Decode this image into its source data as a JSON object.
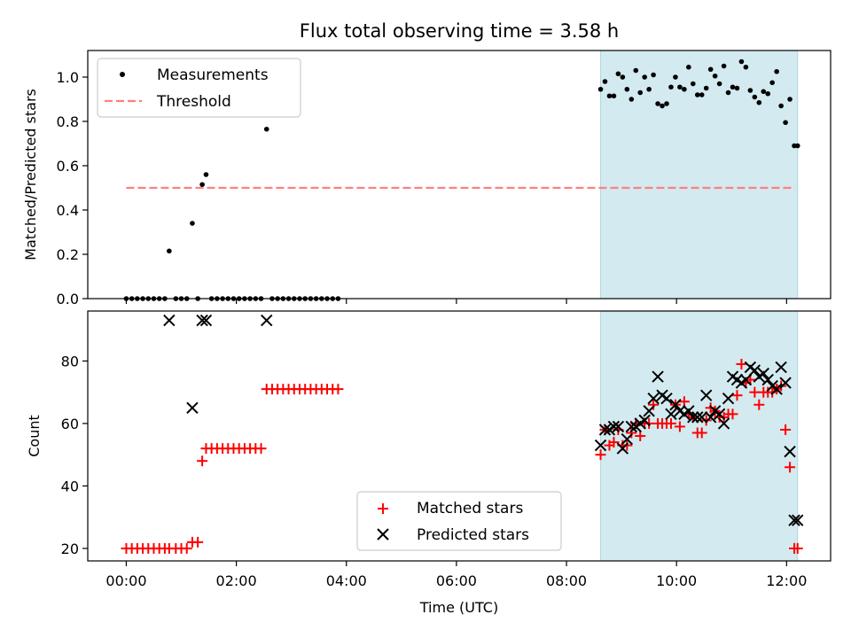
{
  "chart_data": [
    {
      "type": "scatter",
      "title": "Flux total observing time = 3.58 h",
      "xlabel": "",
      "ylabel": "Matched/Predicted stars",
      "xlim": [
        -0.7,
        12.8
      ],
      "ylim": [
        0,
        1.12
      ],
      "yticks": [
        0.0,
        0.2,
        0.4,
        0.6,
        0.8,
        1.0
      ],
      "ytick_labels": [
        "0.0",
        "0.2",
        "0.4",
        "0.6",
        "0.8",
        "1.0"
      ],
      "xticks": [
        0,
        2,
        4,
        6,
        8,
        10,
        12
      ],
      "shaded_region": {
        "x": [
          8.62,
          12.2
        ],
        "color": "#d3eaf0"
      },
      "legend": {
        "placement": "upper-left",
        "entries": [
          "Measurements",
          "Threshold"
        ]
      },
      "series": [
        {
          "name": "Measurements",
          "kind": "scatter",
          "color": "#000000",
          "x": [
            0.0,
            0.1,
            0.2,
            0.3,
            0.4,
            0.5,
            0.6,
            0.7,
            0.78,
            0.9,
            1.0,
            1.1,
            1.2,
            1.3,
            1.38,
            1.45,
            1.55,
            1.65,
            1.75,
            1.85,
            1.95,
            2.05,
            2.15,
            2.25,
            2.35,
            2.45,
            2.55,
            2.65,
            2.75,
            2.85,
            2.95,
            3.05,
            3.15,
            3.25,
            3.35,
            3.45,
            3.55,
            3.65,
            3.75,
            3.85,
            8.62,
            8.7,
            8.78,
            8.86,
            8.94,
            9.02,
            9.1,
            9.18,
            9.26,
            9.34,
            9.42,
            9.5,
            9.58,
            9.66,
            9.74,
            9.82,
            9.9,
            9.98,
            10.06,
            10.14,
            10.22,
            10.3,
            10.38,
            10.46,
            10.54,
            10.62,
            10.7,
            10.78,
            10.86,
            10.94,
            11.02,
            11.1,
            11.18,
            11.26,
            11.34,
            11.42,
            11.5,
            11.58,
            11.66,
            11.74,
            11.82,
            11.9,
            11.98,
            12.06,
            12.14,
            12.2
          ],
          "y": [
            0,
            0,
            0,
            0,
            0,
            0,
            0,
            0,
            0.215,
            0,
            0,
            0,
            0.34,
            0,
            0.515,
            0.56,
            0,
            0,
            0,
            0,
            0,
            0,
            0,
            0,
            0,
            0,
            0.765,
            0,
            0,
            0,
            0,
            0,
            0,
            0,
            0,
            0,
            0,
            0,
            0,
            0,
            0.945,
            0.98,
            0.915,
            0.915,
            1.015,
            1.0,
            0.945,
            0.9,
            1.03,
            0.93,
            1.0,
            0.945,
            1.01,
            0.88,
            0.87,
            0.88,
            0.955,
            1.0,
            0.955,
            0.945,
            1.045,
            0.97,
            0.92,
            0.92,
            0.95,
            1.035,
            1.005,
            0.97,
            1.05,
            0.93,
            0.955,
            0.95,
            1.07,
            1.045,
            0.94,
            0.91,
            0.885,
            0.935,
            0.925,
            0.975,
            1.025,
            0.87,
            0.795,
            0.9,
            0.69,
            0.69
          ]
        },
        {
          "name": "Threshold",
          "kind": "line",
          "style": "dashed",
          "color": "#ff7f7f",
          "x": [
            0,
            12.15
          ],
          "y": [
            0.5,
            0.5
          ]
        }
      ]
    },
    {
      "type": "scatter",
      "title": "",
      "xlabel": "Time (UTC)",
      "ylabel": "Count",
      "xlim": [
        -0.7,
        12.8
      ],
      "ylim": [
        16,
        96
      ],
      "yticks": [
        20,
        40,
        60,
        80
      ],
      "xticks": [
        0,
        2,
        4,
        6,
        8,
        10,
        12
      ],
      "xtick_labels": [
        "00:00",
        "02:00",
        "04:00",
        "06:00",
        "08:00",
        "10:00",
        "12:00"
      ],
      "shaded_region": {
        "x": [
          8.62,
          12.2
        ],
        "color": "#d3eaf0"
      },
      "legend": {
        "placement": "lower-center",
        "entries": [
          "Matched stars",
          "Predicted stars"
        ]
      },
      "series": [
        {
          "name": "Matched stars",
          "kind": "scatter",
          "marker": "plus",
          "color": "#ff0000",
          "x": [
            0.0,
            0.1,
            0.2,
            0.3,
            0.4,
            0.5,
            0.6,
            0.7,
            0.78,
            0.9,
            1.0,
            1.1,
            1.2,
            1.3,
            1.38,
            1.45,
            1.55,
            1.65,
            1.75,
            1.85,
            1.95,
            2.05,
            2.15,
            2.25,
            2.35,
            2.45,
            2.55,
            2.65,
            2.75,
            2.85,
            2.95,
            3.05,
            3.15,
            3.25,
            3.35,
            3.45,
            3.55,
            3.65,
            3.75,
            3.85,
            8.62,
            8.7,
            8.78,
            8.86,
            8.94,
            9.02,
            9.1,
            9.18,
            9.26,
            9.34,
            9.42,
            9.5,
            9.58,
            9.66,
            9.74,
            9.82,
            9.9,
            9.98,
            10.06,
            10.14,
            10.22,
            10.3,
            10.38,
            10.46,
            10.54,
            10.62,
            10.7,
            10.78,
            10.86,
            10.94,
            11.02,
            11.1,
            11.18,
            11.26,
            11.34,
            11.42,
            11.5,
            11.58,
            11.66,
            11.74,
            11.82,
            11.9,
            11.98,
            12.06,
            12.14,
            12.2
          ],
          "y": [
            20,
            20,
            20,
            20,
            20,
            20,
            20,
            20,
            20,
            20,
            20,
            20,
            22,
            22,
            48,
            52,
            52,
            52,
            52,
            52,
            52,
            52,
            52,
            52,
            52,
            52,
            71,
            71,
            71,
            71,
            71,
            71,
            71,
            71,
            71,
            71,
            71,
            71,
            71,
            71,
            50,
            58,
            53,
            54,
            58,
            53,
            53,
            57,
            60,
            56,
            60,
            60,
            66,
            60,
            60,
            60,
            60,
            66,
            59,
            67,
            63,
            62,
            57,
            57,
            61,
            65,
            64,
            62,
            62,
            63,
            63,
            69,
            79,
            73,
            74,
            70,
            66,
            70,
            70,
            70,
            71,
            72,
            58,
            46,
            20,
            20
          ]
        },
        {
          "name": "Predicted stars",
          "kind": "scatter",
          "marker": "x",
          "color": "#000000",
          "x": [
            0.78,
            1.2,
            1.38,
            1.45,
            2.55,
            8.62,
            8.7,
            8.78,
            8.86,
            8.94,
            9.02,
            9.1,
            9.18,
            9.26,
            9.34,
            9.42,
            9.5,
            9.58,
            9.66,
            9.74,
            9.82,
            9.9,
            9.98,
            10.06,
            10.14,
            10.22,
            10.3,
            10.38,
            10.46,
            10.54,
            10.62,
            10.7,
            10.78,
            10.86,
            10.94,
            11.02,
            11.1,
            11.18,
            11.26,
            11.34,
            11.42,
            11.5,
            11.58,
            11.66,
            11.74,
            11.82,
            11.9,
            11.98,
            12.06,
            12.14,
            12.2
          ],
          "y": [
            93,
            65,
            93,
            93,
            93,
            53,
            58,
            58,
            59,
            59,
            52,
            55,
            59,
            59,
            60,
            61,
            64,
            68,
            75,
            69,
            68,
            63,
            66,
            64,
            63,
            64,
            62,
            62,
            62,
            69,
            62,
            64,
            63,
            60,
            68,
            75,
            74,
            73,
            74,
            78,
            77,
            75,
            76,
            74,
            72,
            71,
            78,
            73,
            51,
            29,
            29
          ]
        }
      ]
    }
  ]
}
